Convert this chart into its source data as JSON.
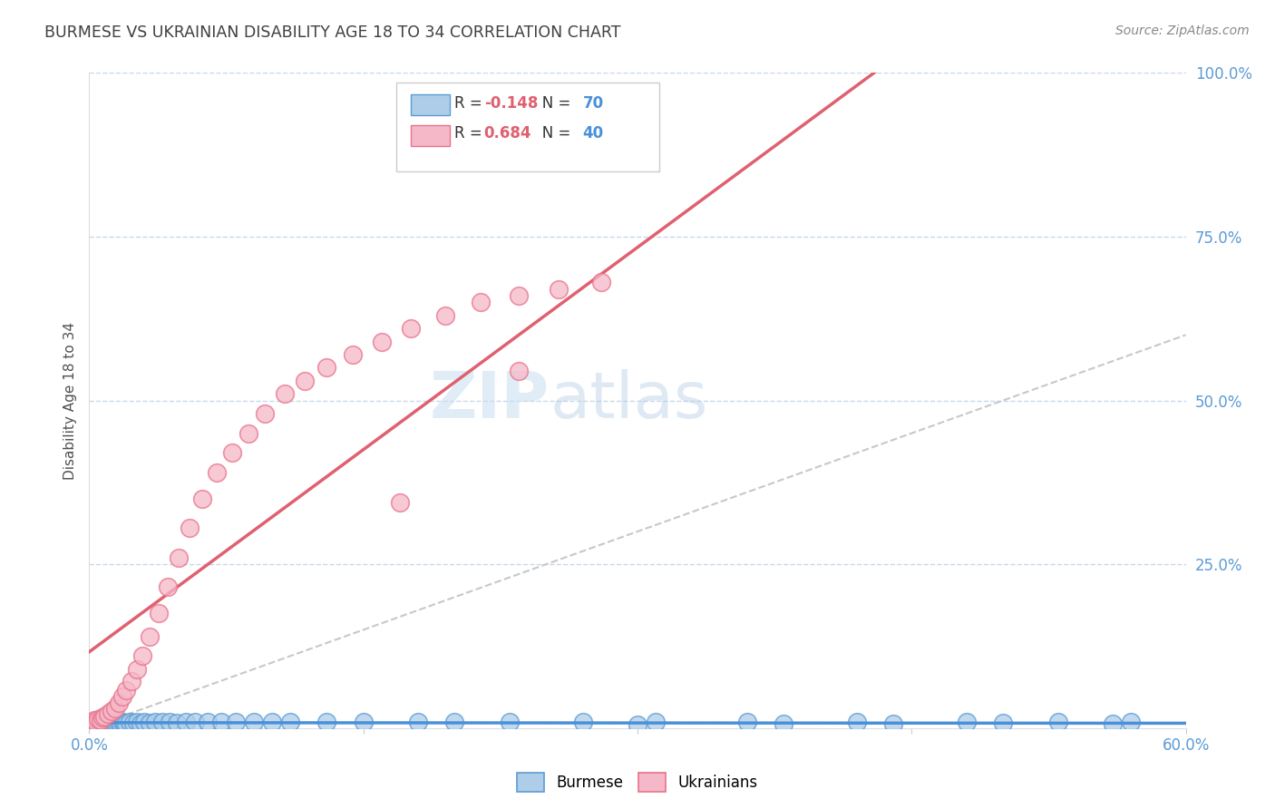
{
  "title": "BURMESE VS UKRAINIAN DISABILITY AGE 18 TO 34 CORRELATION CHART",
  "source": "Source: ZipAtlas.com",
  "ylabel": "Disability Age 18 to 34",
  "xlim": [
    0.0,
    0.6
  ],
  "ylim": [
    0.0,
    1.0
  ],
  "burmese_R": -0.148,
  "burmese_N": 70,
  "ukrainian_R": 0.684,
  "ukrainian_N": 40,
  "burmese_color": "#aecde8",
  "ukrainian_color": "#f5b8c8",
  "burmese_edge_color": "#5b9bd5",
  "ukrainian_edge_color": "#e8728a",
  "burmese_line_color": "#4a90d9",
  "ukrainian_line_color": "#e06070",
  "diagonal_color": "#c8c8c8",
  "background_color": "#ffffff",
  "grid_color": "#c8d8ea",
  "title_color": "#404040",
  "source_color": "#888888",
  "axis_tick_color": "#5b9bd5",
  "ylabel_color": "#505050",
  "watermark_color": "#c8dff0",
  "legend_R_color": "#e06070",
  "legend_N_color": "#5b9bd5",
  "burmese_x": [
    0.001,
    0.001,
    0.001,
    0.001,
    0.001,
    0.002,
    0.002,
    0.002,
    0.002,
    0.003,
    0.003,
    0.003,
    0.004,
    0.004,
    0.005,
    0.005,
    0.006,
    0.006,
    0.007,
    0.007,
    0.008,
    0.008,
    0.009,
    0.01,
    0.01,
    0.011,
    0.012,
    0.013,
    0.014,
    0.015,
    0.016,
    0.017,
    0.018,
    0.019,
    0.02,
    0.022,
    0.024,
    0.026,
    0.028,
    0.03,
    0.033,
    0.036,
    0.04,
    0.044,
    0.048,
    0.053,
    0.058,
    0.065,
    0.072,
    0.08,
    0.09,
    0.1,
    0.11,
    0.13,
    0.15,
    0.18,
    0.2,
    0.23,
    0.27,
    0.31,
    0.36,
    0.42,
    0.48,
    0.53,
    0.57,
    0.3,
    0.38,
    0.44,
    0.5,
    0.56
  ],
  "burmese_y": [
    0.005,
    0.008,
    0.006,
    0.004,
    0.007,
    0.006,
    0.009,
    0.005,
    0.007,
    0.008,
    0.006,
    0.01,
    0.007,
    0.009,
    0.006,
    0.008,
    0.007,
    0.01,
    0.006,
    0.009,
    0.007,
    0.01,
    0.008,
    0.006,
    0.009,
    0.007,
    0.008,
    0.009,
    0.006,
    0.008,
    0.009,
    0.007,
    0.01,
    0.008,
    0.007,
    0.009,
    0.008,
    0.01,
    0.007,
    0.009,
    0.008,
    0.01,
    0.009,
    0.01,
    0.008,
    0.009,
    0.01,
    0.009,
    0.01,
    0.009,
    0.01,
    0.009,
    0.01,
    0.009,
    0.01,
    0.009,
    0.01,
    0.009,
    0.01,
    0.009,
    0.01,
    0.009,
    0.01,
    0.009,
    0.01,
    0.005,
    0.006,
    0.007,
    0.008,
    0.006
  ],
  "ukrainian_x": [
    0.001,
    0.002,
    0.003,
    0.004,
    0.005,
    0.006,
    0.007,
    0.008,
    0.01,
    0.012,
    0.014,
    0.016,
    0.018,
    0.02,
    0.023,
    0.026,
    0.029,
    0.033,
    0.038,
    0.043,
    0.049,
    0.055,
    0.062,
    0.07,
    0.078,
    0.087,
    0.096,
    0.107,
    0.118,
    0.13,
    0.144,
    0.16,
    0.176,
    0.195,
    0.214,
    0.235,
    0.257,
    0.28,
    0.235,
    0.17
  ],
  "ukrainian_y": [
    0.004,
    0.008,
    0.012,
    0.01,
    0.014,
    0.012,
    0.016,
    0.018,
    0.022,
    0.026,
    0.03,
    0.038,
    0.048,
    0.058,
    0.072,
    0.09,
    0.11,
    0.14,
    0.175,
    0.215,
    0.26,
    0.305,
    0.35,
    0.39,
    0.42,
    0.45,
    0.48,
    0.51,
    0.53,
    0.55,
    0.57,
    0.59,
    0.61,
    0.63,
    0.65,
    0.66,
    0.67,
    0.68,
    0.545,
    0.345
  ]
}
